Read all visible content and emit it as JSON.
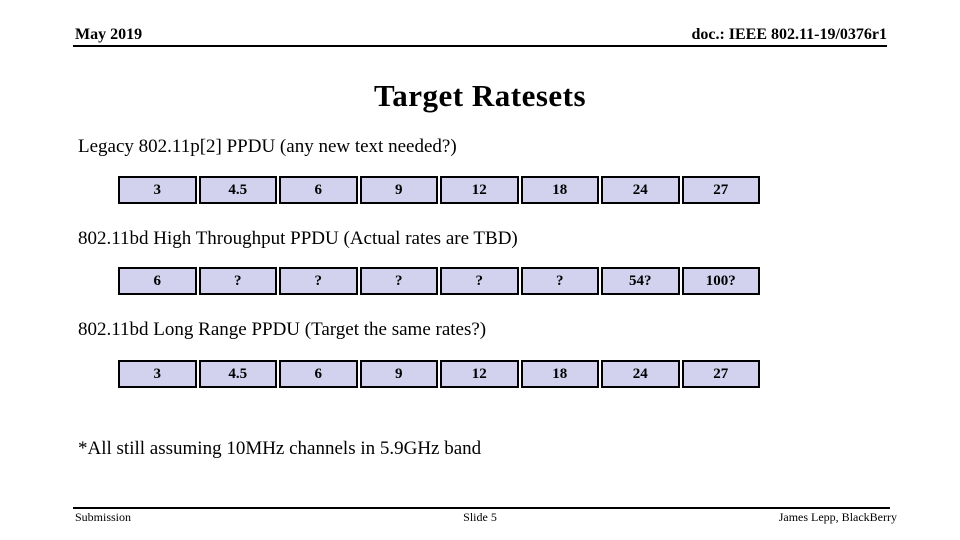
{
  "header": {
    "left": "May 2019",
    "right": "doc.: IEEE 802.11-19/0376r1"
  },
  "title": "Target Ratesets",
  "sections": [
    {
      "label": "Legacy 802.11p[2] PPDU (any new text needed?)",
      "cells": [
        "3",
        "4.5",
        "6",
        "9",
        "12",
        "18",
        "24",
        "27"
      ]
    },
    {
      "label": "802.11bd High Throughput PPDU (Actual rates are TBD)",
      "cells": [
        "6",
        "?",
        "?",
        "?",
        "?",
        "?",
        "54?",
        "100?"
      ]
    },
    {
      "label": "802.11bd Long Range PPDU (Target the same rates?)",
      "cells": [
        "3",
        "4.5",
        "6",
        "9",
        "12",
        "18",
        "24",
        "27"
      ]
    }
  ],
  "note": "*All still assuming 10MHz channels in 5.9GHz band",
  "footer": {
    "left": "Submission",
    "center": "Slide 5",
    "right": "James Lepp, BlackBerry"
  },
  "colors": {
    "cell_bg": "#d2d2ee",
    "text": "#000000",
    "rule": "#000000"
  }
}
